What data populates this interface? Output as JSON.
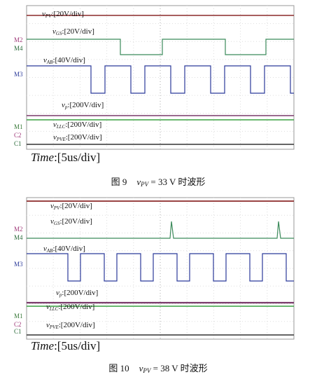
{
  "figures": [
    {
      "labels": [
        {
          "symbol": "v",
          "subscript": "PV",
          "rest": ":[20V/div]"
        },
        {
          "symbol": "v",
          "subscript": "GS",
          "rest": ":[20V/div]"
        },
        {
          "symbol": "v",
          "subscript": "AB",
          "rest": ":[40V/div]"
        },
        {
          "symbol": "v",
          "subscript": "p",
          "rest": ":[200V/div]"
        },
        {
          "symbol": "v",
          "subscript": "LLC",
          "rest": ":[200V/div]"
        },
        {
          "symbol": "v",
          "subscript": "PVE",
          "rest": ":[200V/div]"
        }
      ],
      "markers": [
        "M2",
        "M4",
        "M3",
        "M1",
        "C2",
        "C1"
      ],
      "time": {
        "name": "Time",
        "rest": ":[5us/div]"
      },
      "caption": {
        "number": "图 9",
        "symbol": "v",
        "subscript": "PV",
        "rest": " = 33 V 时波形"
      }
    },
    {
      "labels": [
        {
          "symbol": "v",
          "subscript": "PV",
          "rest": ":[20V/div]"
        },
        {
          "symbol": "v",
          "subscript": "GS",
          "rest": ":[20V/div]"
        },
        {
          "symbol": "v",
          "subscript": "AB",
          "rest": ":[40V/div]"
        },
        {
          "symbol": "v",
          "subscript": "p",
          "rest": ":[200V/div]"
        },
        {
          "symbol": "v",
          "subscript": "LLC",
          "rest": ":[200V/div]"
        },
        {
          "symbol": "v",
          "subscript": "PVE",
          "rest": ":[200V/div]"
        }
      ],
      "markers": [
        "M2",
        "M4",
        "M3",
        "M1",
        "C2",
        "C1"
      ],
      "time": {
        "name": "Time",
        "rest": ":[5us/div]"
      },
      "caption": {
        "number": "图 10",
        "symbol": "v",
        "subscript": "PV",
        "rest": " = 38 V 时波形"
      }
    }
  ]
}
